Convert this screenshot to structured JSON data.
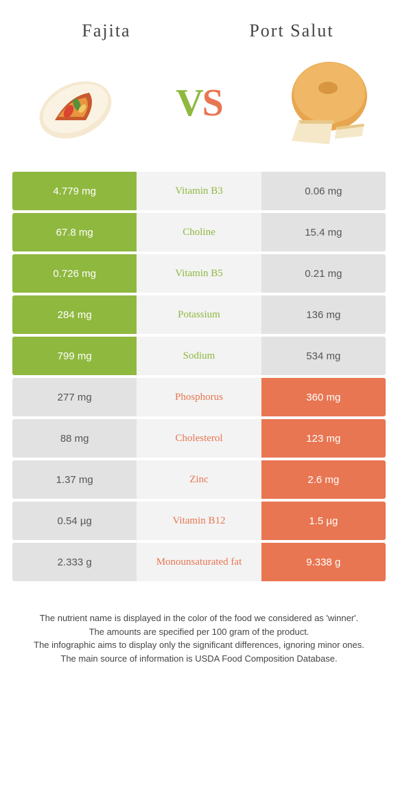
{
  "colors": {
    "green": "#8fb83f",
    "orange": "#e87652",
    "grey": "#e2e2e2",
    "mid_bg": "#f3f3f3"
  },
  "food_left": "Fajita",
  "food_right": "Port Salut",
  "vs_v": "V",
  "vs_s": "S",
  "rows": [
    {
      "left": "4.779 mg",
      "label": "Vitamin B3",
      "right": "0.06 mg",
      "winner": "left"
    },
    {
      "left": "67.8 mg",
      "label": "Choline",
      "right": "15.4 mg",
      "winner": "left"
    },
    {
      "left": "0.726 mg",
      "label": "Vitamin B5",
      "right": "0.21 mg",
      "winner": "left"
    },
    {
      "left": "284 mg",
      "label": "Potassium",
      "right": "136 mg",
      "winner": "left"
    },
    {
      "left": "799 mg",
      "label": "Sodium",
      "right": "534 mg",
      "winner": "left"
    },
    {
      "left": "277 mg",
      "label": "Phosphorus",
      "right": "360 mg",
      "winner": "right"
    },
    {
      "left": "88 mg",
      "label": "Cholesterol",
      "right": "123 mg",
      "winner": "right"
    },
    {
      "left": "1.37 mg",
      "label": "Zinc",
      "right": "2.6 mg",
      "winner": "right"
    },
    {
      "left": "0.54 µg",
      "label": "Vitamin B12",
      "right": "1.5 µg",
      "winner": "right"
    },
    {
      "left": "2.333 g",
      "label": "Monounsaturated fat",
      "right": "9.338 g",
      "winner": "right"
    }
  ],
  "footer_lines": [
    "The nutrient name is displayed in the color of the food we considered as 'winner'.",
    "The amounts are specified per 100 gram of the product.",
    "The infographic aims to display only the significant differences, ignoring minor ones.",
    "The main source of information is USDA Food Composition Database."
  ]
}
